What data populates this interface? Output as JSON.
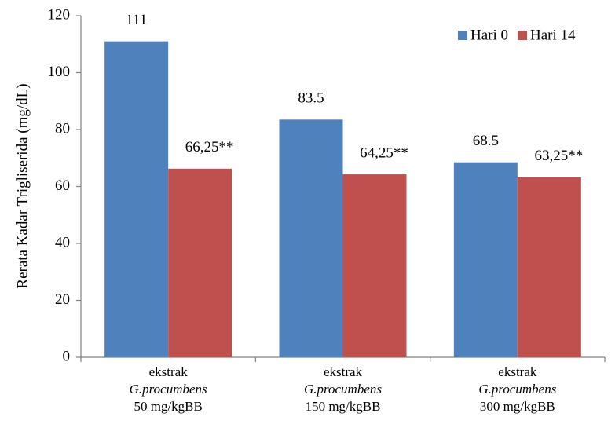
{
  "chart_data": {
    "type": "bar",
    "y_label": "Rerata Kadar Trigliserida (mg/dL)",
    "categories": [
      [
        "ekstrak",
        "G.procumbens",
        "50 mg/kgBB"
      ],
      [
        "ekstrak",
        "G.procumbens",
        "150 mg/kgBB"
      ],
      [
        "ekstrak",
        "G.procumbens",
        "300 mg/kgBB"
      ]
    ],
    "series": [
      {
        "name": "Hari 0",
        "color": "#4f81bd",
        "values": [
          111,
          83.5,
          68.5
        ]
      },
      {
        "name": "Hari 14",
        "color": "#c0504d",
        "values": [
          66.25,
          64.25,
          63.25
        ],
        "value_labels": [
          "66,25**",
          "64,25**",
          "63,25**"
        ]
      }
    ],
    "ylim": [
      0,
      120
    ],
    "yticks": [
      0,
      20,
      40,
      60,
      80,
      100,
      120
    ],
    "legend": "top-right"
  }
}
